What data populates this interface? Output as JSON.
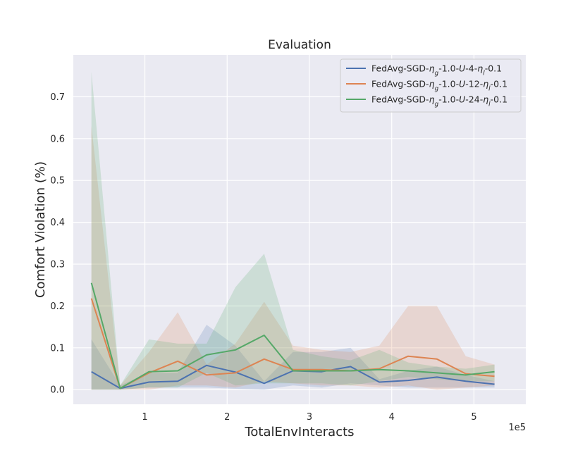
{
  "chart_data": {
    "type": "line",
    "title": "Evaluation",
    "xlabel": "TotalEnvInteracts",
    "ylabel": "Comfort Violation (%)",
    "x_offset_label": "1e5",
    "xlim": [
      0.13,
      5.63
    ],
    "ylim": [
      -0.035,
      0.8
    ],
    "xticks": [
      1,
      2,
      3,
      4,
      5
    ],
    "xtick_labels": [
      "1",
      "2",
      "3",
      "4",
      "5"
    ],
    "yticks": [
      0.0,
      0.1,
      0.2,
      0.3,
      0.4,
      0.5,
      0.6,
      0.7
    ],
    "ytick_labels": [
      "0.0",
      "0.1",
      "0.2",
      "0.3",
      "0.4",
      "0.5",
      "0.6",
      "0.7"
    ],
    "grid": true,
    "legend_position": "top-right",
    "x": [
      0.35,
      0.7,
      1.05,
      1.4,
      1.75,
      2.1,
      2.45,
      2.8,
      3.15,
      3.5,
      3.85,
      4.2,
      4.55,
      4.9,
      5.25
    ],
    "series": [
      {
        "name_parts": [
          "FedAvg-SGD-",
          "η",
          "g",
          "-1.0-",
          "U",
          "-4-",
          "η",
          "l",
          "-0.1"
        ],
        "color": "#4c72b0",
        "values": [
          0.043,
          0.003,
          0.018,
          0.02,
          0.058,
          0.042,
          0.015,
          0.045,
          0.043,
          0.055,
          0.018,
          0.022,
          0.03,
          0.02,
          0.013
        ],
        "lower": [
          0.0,
          0.0,
          0.005,
          0.005,
          0.005,
          0.002,
          0.0,
          0.01,
          0.005,
          0.015,
          0.01,
          0.005,
          0.005,
          0.005,
          0.005
        ],
        "upper": [
          0.12,
          0.01,
          0.04,
          0.04,
          0.155,
          0.105,
          0.02,
          0.09,
          0.09,
          0.1,
          0.025,
          0.045,
          0.055,
          0.035,
          0.02
        ]
      },
      {
        "name_parts": [
          "FedAvg-SGD-",
          "η",
          "g",
          "-1.0-",
          "U",
          "-12-",
          "η",
          "l",
          "-0.1"
        ],
        "color": "#dd8452",
        "values": [
          0.218,
          0.003,
          0.04,
          0.068,
          0.035,
          0.04,
          0.073,
          0.048,
          0.048,
          0.045,
          0.05,
          0.08,
          0.073,
          0.038,
          0.032
        ],
        "lower": [
          0.0,
          0.0,
          0.0,
          0.01,
          0.01,
          0.005,
          0.02,
          0.015,
          0.01,
          0.01,
          0.005,
          0.01,
          0.0,
          0.005,
          0.01
        ],
        "upper": [
          0.63,
          0.01,
          0.09,
          0.185,
          0.06,
          0.11,
          0.21,
          0.105,
          0.095,
          0.09,
          0.105,
          0.2,
          0.2,
          0.08,
          0.06
        ]
      },
      {
        "name_parts": [
          "FedAvg-SGD-",
          "η",
          "g",
          "-1.0-",
          "U",
          "-24-",
          "η",
          "l",
          "-0.1"
        ],
        "color": "#55a868",
        "values": [
          0.255,
          0.003,
          0.043,
          0.045,
          0.083,
          0.095,
          0.13,
          0.045,
          0.045,
          0.045,
          0.048,
          0.045,
          0.04,
          0.035,
          0.043
        ],
        "lower": [
          0.0,
          0.0,
          0.005,
          0.005,
          0.04,
          0.01,
          0.015,
          0.015,
          0.015,
          0.01,
          0.02,
          0.03,
          0.025,
          0.02,
          0.02
        ],
        "upper": [
          0.76,
          0.01,
          0.12,
          0.11,
          0.11,
          0.245,
          0.325,
          0.095,
          0.08,
          0.07,
          0.095,
          0.065,
          0.055,
          0.05,
          0.06
        ]
      }
    ]
  }
}
